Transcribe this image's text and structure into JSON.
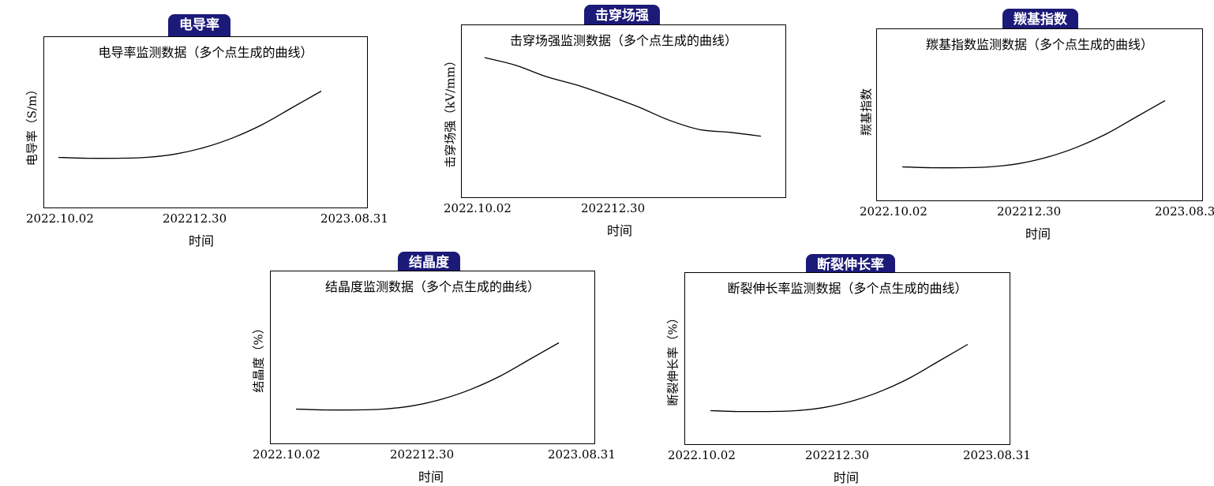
{
  "chart_data": [
    {
      "type": "line",
      "badge": "电导率",
      "title": "电导率监测数据（多个点生成的曲线）",
      "ylabel": "电导率（S/m）",
      "xlabel": "时间",
      "x_ticks": [
        "2022.10.02",
        "202212.30",
        "2023.08.31"
      ],
      "series": [
        {
          "values": [
            0.1,
            0.09,
            0.09,
            0.1,
            0.14,
            0.22,
            0.34,
            0.5,
            0.7,
            0.9
          ]
        }
      ],
      "grid": false
    },
    {
      "type": "line",
      "badge": "击穿场强",
      "title": "击穿场强监测数据（多个点生成的曲线）",
      "ylabel": "击穿场强（kV/mm）",
      "xlabel": "时间",
      "x_ticks": [
        "2022.10.02",
        "202212.30"
      ],
      "series": [
        {
          "values": [
            1.0,
            0.92,
            0.8,
            0.71,
            0.6,
            0.48,
            0.34,
            0.24,
            0.21,
            0.17
          ]
        }
      ],
      "grid": false
    },
    {
      "type": "line",
      "badge": "羰基指数",
      "title": "羰基指数监测数据（多个点生成的曲线）",
      "ylabel": "羰基指数",
      "xlabel": "时间",
      "x_ticks": [
        "2022.10.02",
        "202212.30",
        "2023.08.3"
      ],
      "series": [
        {
          "values": [
            0.1,
            0.09,
            0.09,
            0.1,
            0.14,
            0.22,
            0.34,
            0.5,
            0.7,
            0.9
          ]
        }
      ],
      "grid": false
    },
    {
      "type": "line",
      "badge": "结晶度",
      "title": "结晶度监测数据（多个点生成的曲线）",
      "ylabel": "结晶度（%）",
      "xlabel": "时间",
      "x_ticks": [
        "2022.10.02",
        "202212.30",
        "2023.08.31"
      ],
      "series": [
        {
          "values": [
            0.1,
            0.09,
            0.09,
            0.1,
            0.14,
            0.22,
            0.34,
            0.5,
            0.7,
            0.9
          ]
        }
      ],
      "grid": false
    },
    {
      "type": "line",
      "badge": "断裂伸长率",
      "title": "断裂伸长率监测数据（多个点生成的曲线）",
      "ylabel": "断裂伸长率（%）",
      "xlabel": "时间",
      "x_ticks": [
        "2022.10.02",
        "202212.30",
        "2023.08.31"
      ],
      "series": [
        {
          "values": [
            0.1,
            0.09,
            0.09,
            0.1,
            0.14,
            0.22,
            0.34,
            0.5,
            0.7,
            0.9
          ]
        }
      ],
      "grid": false
    }
  ]
}
